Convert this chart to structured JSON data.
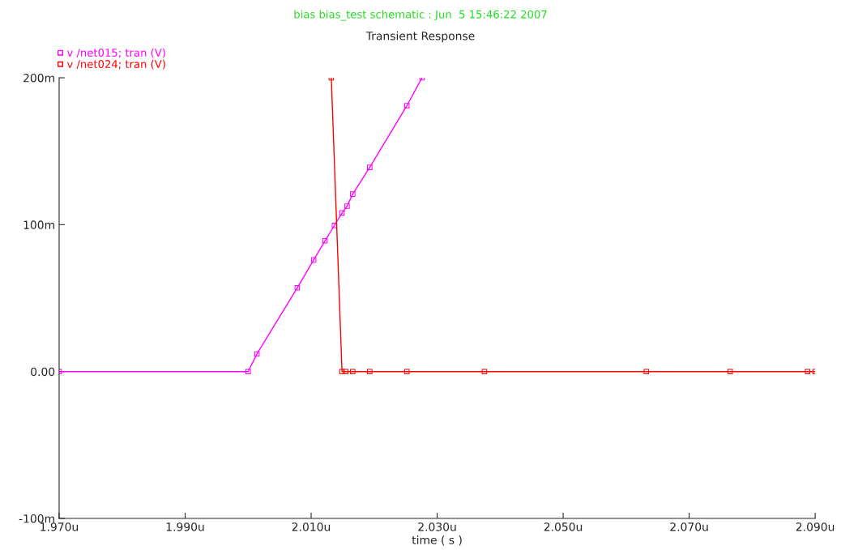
{
  "chart_data": {
    "type": "line",
    "title": "Transient Response",
    "subtitle": "bias bias_test schematic : Jun  5 15:46:22 2007",
    "xlabel": "time ( s )",
    "series": [
      {
        "name": "v /net015; tran (V)",
        "color": "#ff00ff",
        "x": [
          1.97,
          2.0,
          2.0014,
          2.0078,
          2.0104,
          2.0122,
          2.0137,
          2.0149,
          2.0157,
          2.0166,
          2.0193,
          2.0252,
          2.0276
        ],
        "values": [
          0,
          0,
          12,
          57,
          76,
          89,
          99.5,
          108,
          112.6,
          120.8,
          139,
          181,
          200
        ]
      },
      {
        "name": "v /net024; tran (V)",
        "color": "#ff0000",
        "x": [
          2.0132,
          2.0149,
          2.0155,
          2.0166,
          2.0193,
          2.0252,
          2.0375,
          2.0632,
          2.0765,
          2.0888,
          2.09
        ],
        "values": [
          200,
          0,
          0,
          0,
          0,
          0,
          0,
          0,
          0,
          0,
          0
        ]
      }
    ],
    "xlim": [
      1.97,
      2.09
    ],
    "xticks": [
      {
        "value": 1.97,
        "label": "1.970u"
      },
      {
        "value": 1.99,
        "label": "1.990u"
      },
      {
        "value": 2.01,
        "label": "2.010u"
      },
      {
        "value": 2.03,
        "label": "2.030u"
      },
      {
        "value": 2.05,
        "label": "2.050u"
      },
      {
        "value": 2.07,
        "label": "2.070u"
      },
      {
        "value": 2.09,
        "label": "2.090u"
      }
    ],
    "ylim": [
      -100,
      200
    ],
    "yticks": [
      {
        "value": -100,
        "label": "-100m"
      },
      {
        "value": 0,
        "label": "0.00"
      },
      {
        "value": 100,
        "label": "100m"
      },
      {
        "value": 200,
        "label": "200m"
      }
    ],
    "grid": false,
    "legend": "top left",
    "marker": "square",
    "line_style": "solid"
  }
}
